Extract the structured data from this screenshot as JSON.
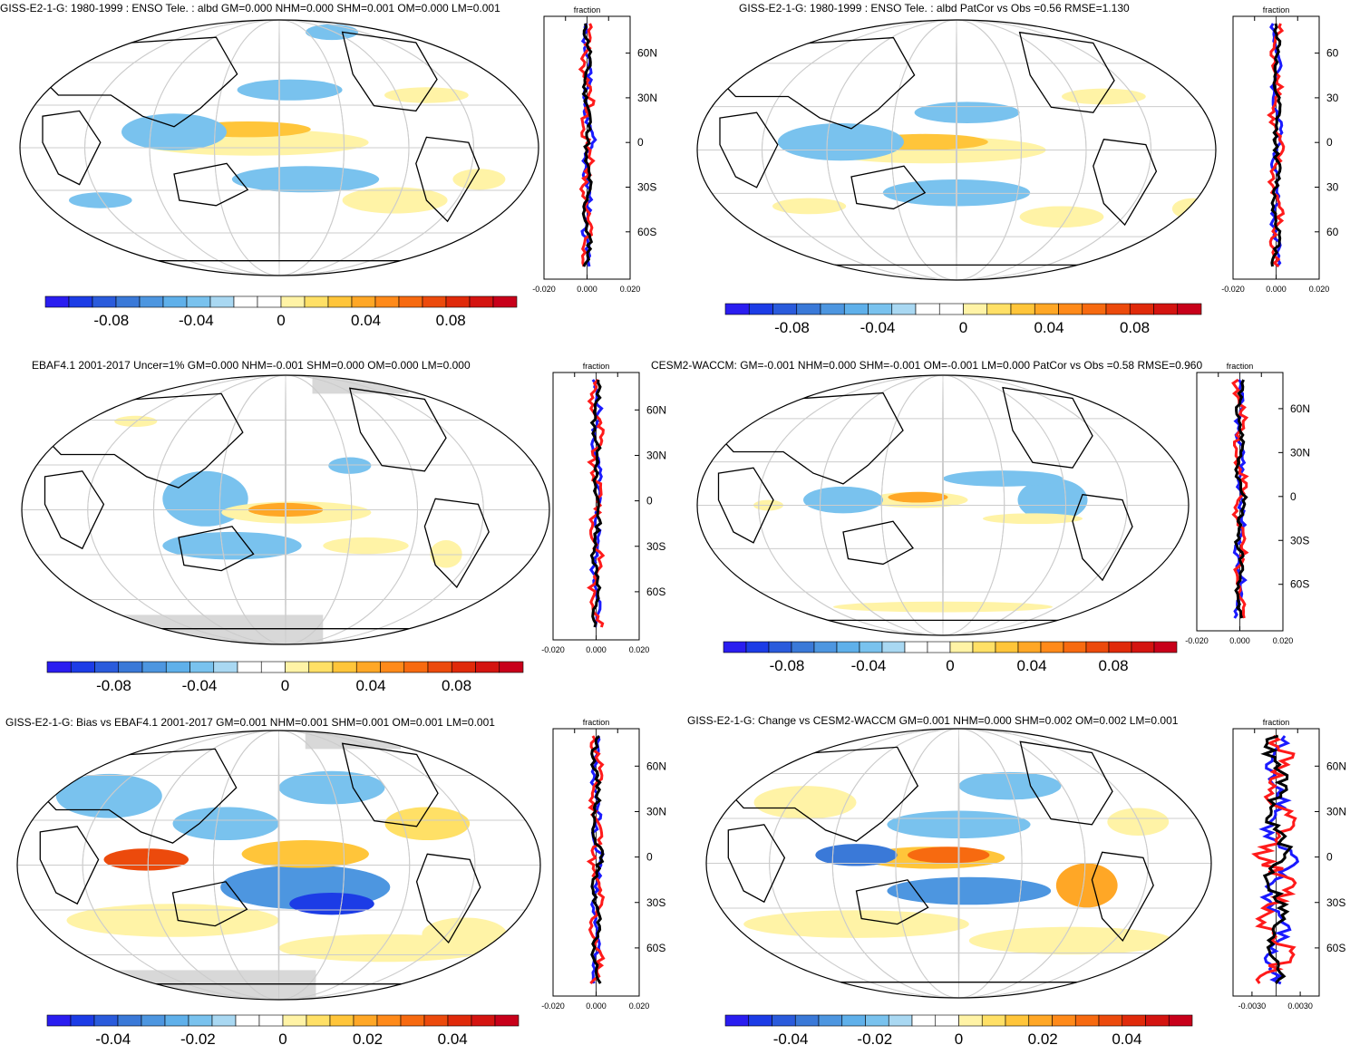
{
  "colors": {
    "scale": [
      "#2a1df0",
      "#1c3ce6",
      "#2a5bdc",
      "#3a79d8",
      "#4d96e0",
      "#5fb0ea",
      "#79c2ee",
      "#a9d8f2",
      "#ffffff",
      "#ffffff",
      "#fff3a6",
      "#ffe066",
      "#ffc53a",
      "#ffa726",
      "#ff8a1a",
      "#f76a10",
      "#ec4a0c",
      "#e02a0a",
      "#d41410",
      "#c8001a"
    ],
    "land": "#000000",
    "grid": "#cccccc",
    "missing": "#d8d8d8",
    "model": "#ff1a1a",
    "obs": "#1a1aff",
    "mean": "#000000"
  },
  "panels": [
    {
      "id": "model",
      "title": "GISS-E2-1-G: 1980-1999 : ENSO Tele. : albd GM=0.000 NHM=0.000 SHM=0.001 OM=0.000 LM=0.001",
      "profile_label": "fraction",
      "lat_labels": [
        "60N",
        "30N",
        "0",
        "30S",
        "60S"
      ],
      "x_ticks": [
        "-0.020",
        "0.000",
        "0.020"
      ],
      "colorbar_labels": [
        "-0.08",
        "-0.04",
        "0",
        "0.04",
        "0.08"
      ]
    },
    {
      "id": "model-vs-obs",
      "title": "GISS-E2-1-G: 1980-1999 : ENSO Tele. : albd PatCor vs Obs =0.56 RMSE=1.130",
      "profile_label": "fraction",
      "lat_labels": [
        "60",
        "30",
        "0",
        "30",
        "60"
      ],
      "x_ticks": [
        "-0.020",
        "0.000",
        "0.020"
      ],
      "colorbar_labels": [
        "-0.08",
        "-0.04",
        "0",
        "0.04",
        "0.08"
      ]
    },
    {
      "id": "obs",
      "title": "EBAF4.1 2001-2017 Uncer=1% GM=0.000 NHM=-0.001 SHM=0.000 OM=0.000 LM=0.000",
      "profile_label": "fraction",
      "lat_labels": [
        "60N",
        "30N",
        "0",
        "30S",
        "60S"
      ],
      "x_ticks": [
        "-0.020",
        "0.000",
        "0.020"
      ],
      "colorbar_labels": [
        "-0.08",
        "-0.04",
        "0",
        "0.04",
        "0.08"
      ]
    },
    {
      "id": "reference",
      "title": "CESM2-WACCM: GM=-0.001 NHM=0.000 SHM=-0.001 OM=-0.001 LM=0.000 PatCor vs Obs =0.58 RMSE=0.960",
      "profile_label": "fraction",
      "lat_labels": [
        "60N",
        "30N",
        "0",
        "30S",
        "60S"
      ],
      "x_ticks": [
        "-0.020",
        "0.000",
        "0.020"
      ],
      "colorbar_labels": [
        "-0.08",
        "-0.04",
        "0",
        "0.04",
        "0.08"
      ]
    },
    {
      "id": "bias",
      "title": "GISS-E2-1-G: Bias vs EBAF4.1 2001-2017 GM=0.001 NHM=0.001 SHM=0.001 OM=0.001 LM=0.001",
      "profile_label": "fraction",
      "lat_labels": [
        "60N",
        "30N",
        "0",
        "30S",
        "60S"
      ],
      "x_ticks": [
        "-0.020",
        "0.000",
        "0.020"
      ],
      "colorbar_labels": [
        "-0.04",
        "-0.02",
        "0",
        "0.02",
        "0.04"
      ]
    },
    {
      "id": "change",
      "title": "GISS-E2-1-G: Change vs CESM2-WACCM GM=0.001 NHM=0.000 SHM=0.002 OM=0.002 LM=0.001",
      "profile_label": "fraction",
      "lat_labels": [
        "60N",
        "30N",
        "0",
        "30S",
        "60S"
      ],
      "x_ticks": [
        "-0.0030",
        "0.0030"
      ],
      "colorbar_labels": [
        "-0.04",
        "-0.02",
        "0",
        "0.02",
        "0.04"
      ]
    }
  ]
}
